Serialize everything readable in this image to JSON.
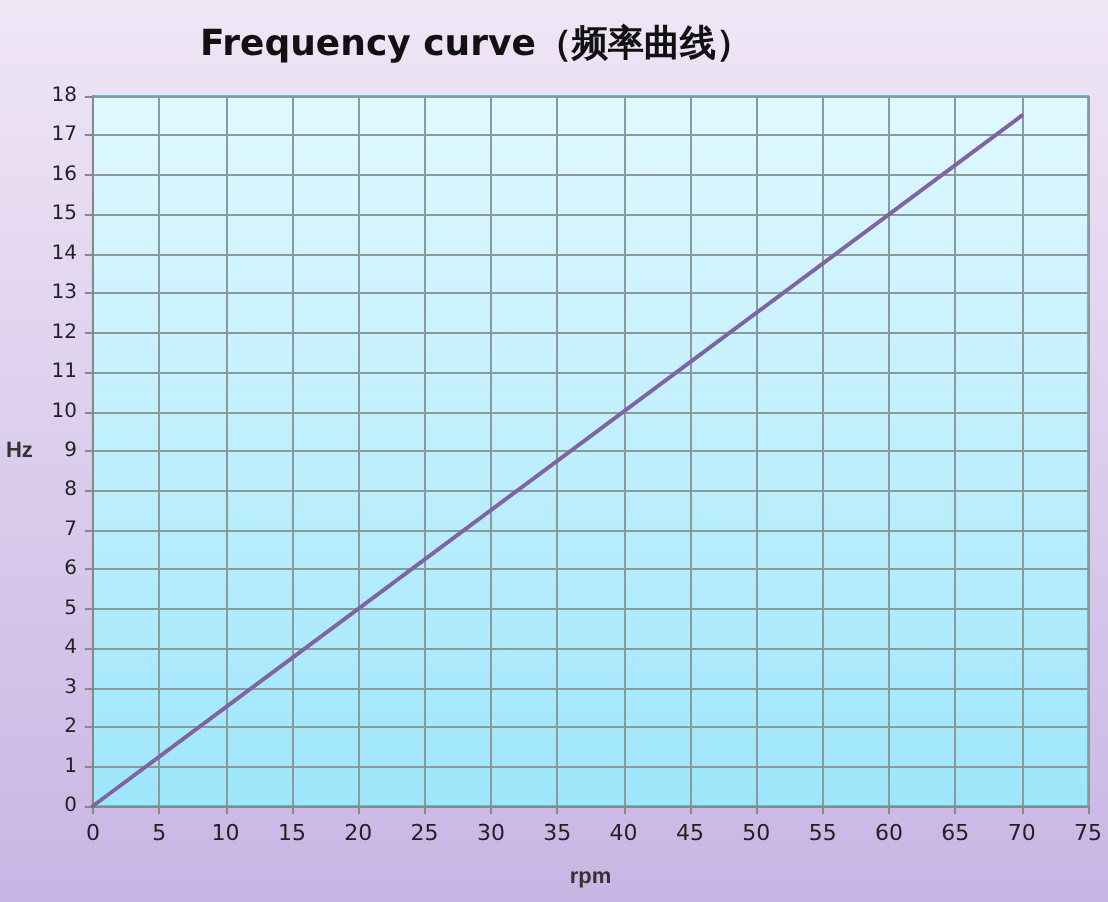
{
  "chart_data": {
    "type": "line",
    "title": "Frequency curve（频率曲线）",
    "xlabel": "rpm",
    "ylabel": "Hz",
    "x": [
      0,
      10,
      20,
      30,
      40,
      50,
      60,
      70
    ],
    "series": [
      {
        "color": "#8064a2",
        "values": [
          0,
          2.5,
          5,
          7.5,
          10,
          12.5,
          15,
          17.5
        ]
      }
    ],
    "xlim": [
      0,
      75
    ],
    "xticks": [
      0,
      5,
      10,
      15,
      20,
      25,
      30,
      35,
      40,
      45,
      50,
      55,
      60,
      65,
      70,
      75
    ],
    "ylim": [
      0,
      18
    ],
    "yticks": [
      0,
      1,
      2,
      3,
      4,
      5,
      6,
      7,
      8,
      9,
      10,
      11,
      12,
      13,
      14,
      15,
      16,
      17,
      18
    ],
    "grid": true,
    "marker": "none",
    "line_style": "solid"
  }
}
